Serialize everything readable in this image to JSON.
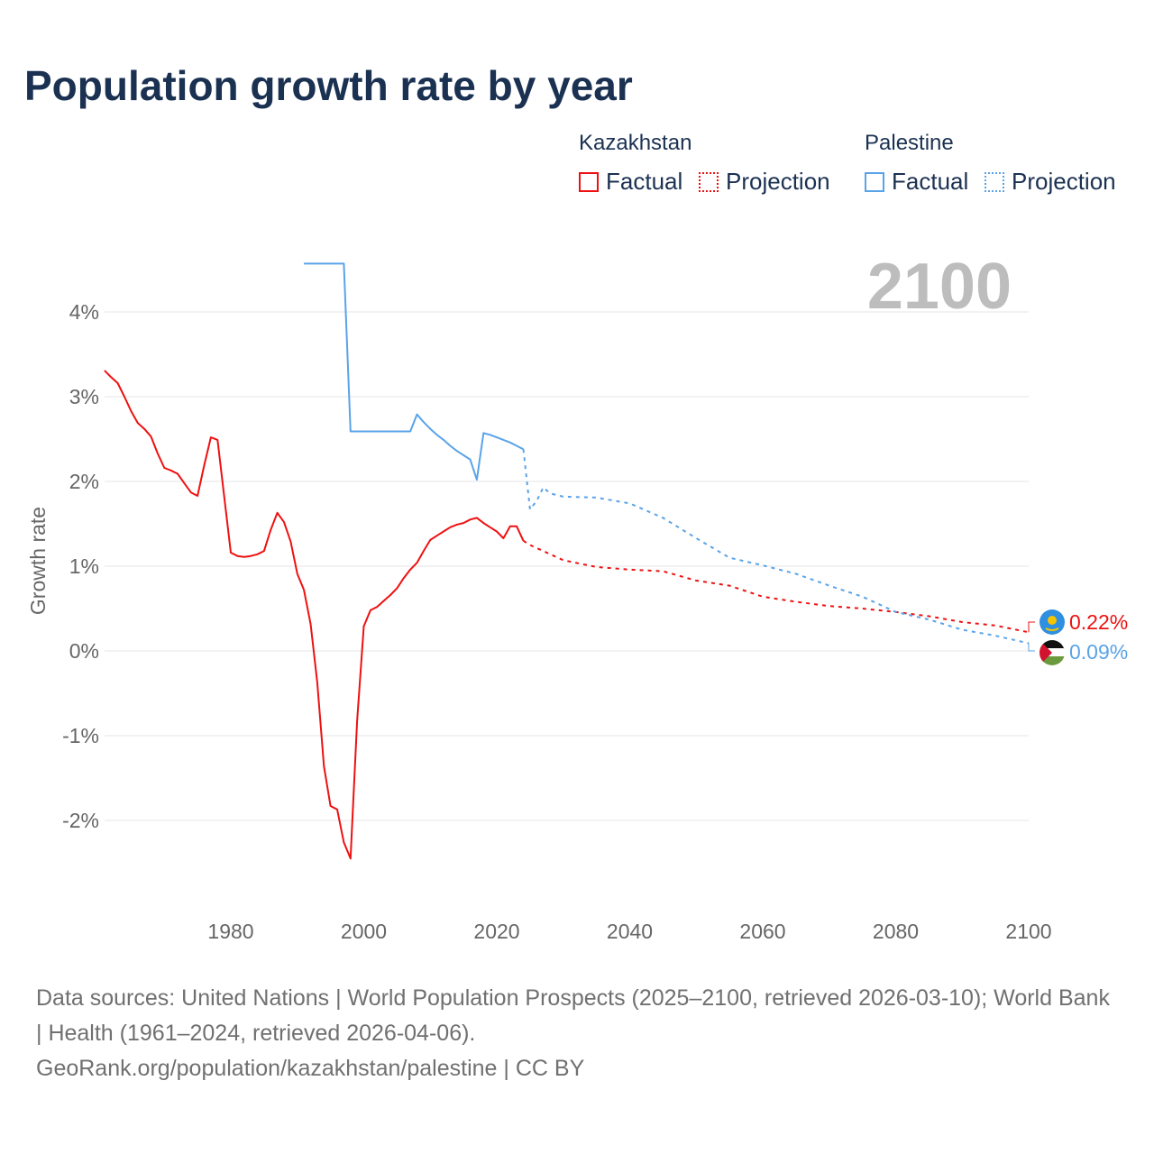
{
  "title": "Population growth rate by year",
  "legend": {
    "groups": [
      {
        "name": "Kazakhstan",
        "items": [
          "Factual",
          "Projection"
        ],
        "color": "#ee1111"
      },
      {
        "name": "Palestine",
        "items": [
          "Factual",
          "Projection"
        ],
        "color": "#5aa3e8"
      }
    ]
  },
  "year_label": "2100",
  "sources": {
    "line1": "Data sources: United Nations | World Population Prospects (2025–2100, retrieved 2026-03-10); World Bank | Health (1961–2024, retrieved 2026-04-06).",
    "line2": "GeoRank.org/population/kazakhstan/palestine | CC BY"
  },
  "chart_data": {
    "type": "line",
    "title": "Population growth rate by year",
    "xlabel": "",
    "ylabel": "Growth rate",
    "xlim": [
      1961,
      2100
    ],
    "ylim": [
      -3,
      4.8
    ],
    "x_ticks": [
      1980,
      2000,
      2020,
      2040,
      2060,
      2080,
      2100
    ],
    "y_ticks": [
      -2,
      -1,
      0,
      1,
      2,
      3,
      4
    ],
    "y_tick_labels": [
      "-2%",
      "-1%",
      "0%",
      "1%",
      "2%",
      "3%",
      "4%"
    ],
    "x_tick_labels": [
      "1980",
      "2000",
      "2020",
      "2040",
      "2060",
      "2080",
      "2100"
    ],
    "grid": true,
    "end_labels": [
      {
        "series": "Kazakhstan",
        "text": "0.22%",
        "color": "#ee1111"
      },
      {
        "series": "Palestine",
        "text": "0.09%",
        "color": "#5aa3e8"
      }
    ],
    "series": [
      {
        "name": "Kazakhstan Factual",
        "color": "#ee1111",
        "dashed": false,
        "x": [
          1961,
          1962,
          1963,
          1964,
          1965,
          1966,
          1967,
          1968,
          1969,
          1970,
          1971,
          1972,
          1973,
          1974,
          1975,
          1976,
          1977,
          1978,
          1979,
          1980,
          1981,
          1982,
          1983,
          1984,
          1985,
          1986,
          1987,
          1988,
          1989,
          1990,
          1991,
          1992,
          1993,
          1994,
          1995,
          1996,
          1997,
          1998,
          1999,
          2000,
          2001,
          2002,
          2003,
          2004,
          2005,
          2006,
          2007,
          2008,
          2009,
          2010,
          2011,
          2012,
          2013,
          2014,
          2015,
          2016,
          2017,
          2018,
          2019,
          2020,
          2021,
          2022,
          2023,
          2024
        ],
        "y": [
          3.31,
          3.23,
          3.16,
          3.0,
          2.83,
          2.69,
          2.62,
          2.53,
          2.33,
          2.16,
          2.13,
          2.09,
          1.98,
          1.87,
          1.83,
          2.19,
          2.52,
          2.49,
          1.83,
          1.16,
          1.12,
          1.11,
          1.12,
          1.14,
          1.18,
          1.43,
          1.63,
          1.52,
          1.29,
          0.91,
          0.72,
          0.32,
          -0.37,
          -1.36,
          -1.83,
          -1.87,
          -2.26,
          -2.45,
          -0.83,
          0.29,
          0.48,
          0.52,
          0.59,
          0.66,
          0.74,
          0.86,
          0.96,
          1.04,
          1.18,
          1.31,
          1.36,
          1.41,
          1.46,
          1.49,
          1.51,
          1.55,
          1.57,
          1.51,
          1.46,
          1.41,
          1.33,
          1.47,
          1.47,
          1.3
        ]
      },
      {
        "name": "Kazakhstan Projection",
        "color": "#ee1111",
        "dashed": true,
        "x": [
          2024,
          2025,
          2030,
          2035,
          2040,
          2045,
          2050,
          2055,
          2060,
          2065,
          2070,
          2075,
          2080,
          2085,
          2090,
          2095,
          2100
        ],
        "y": [
          1.3,
          1.25,
          1.07,
          0.99,
          0.96,
          0.94,
          0.83,
          0.77,
          0.64,
          0.58,
          0.53,
          0.5,
          0.46,
          0.41,
          0.34,
          0.3,
          0.22
        ]
      },
      {
        "name": "Palestine Factual",
        "color": "#5aa3e8",
        "dashed": false,
        "x": [
          1991,
          1997,
          1998,
          2007,
          2008,
          2009,
          2010,
          2011,
          2012,
          2013,
          2014,
          2015,
          2016,
          2017,
          2018,
          2019,
          2020,
          2021,
          2022,
          2023,
          2024
        ],
        "y": [
          4.57,
          4.57,
          2.59,
          2.59,
          2.79,
          2.7,
          2.62,
          2.55,
          2.49,
          2.42,
          2.36,
          2.31,
          2.26,
          2.02,
          2.57,
          2.55,
          2.52,
          2.49,
          2.46,
          2.42,
          2.38
        ]
      },
      {
        "name": "Palestine Projection",
        "color": "#5aa3e8",
        "dashed": true,
        "x": [
          2024,
          2025,
          2026,
          2027,
          2028,
          2030,
          2035,
          2040,
          2045,
          2050,
          2055,
          2060,
          2065,
          2070,
          2075,
          2080,
          2085,
          2090,
          2095,
          2100
        ],
        "y": [
          2.38,
          1.67,
          1.77,
          1.93,
          1.86,
          1.82,
          1.81,
          1.74,
          1.57,
          1.33,
          1.1,
          1.01,
          0.91,
          0.77,
          0.64,
          0.46,
          0.37,
          0.25,
          0.18,
          0.09
        ]
      }
    ]
  }
}
